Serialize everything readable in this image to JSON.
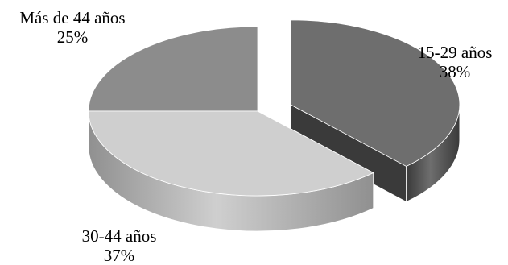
{
  "chart_data": {
    "type": "pie",
    "title": "",
    "categories": [
      "15-29 años",
      "30-44 años",
      "Más de 44 años"
    ],
    "values": [
      38,
      37,
      25
    ],
    "value_labels": [
      "38%",
      "37%",
      "25%"
    ],
    "colors": {
      "15-29 años": {
        "top": "#6e6e6e",
        "side": "#3a3a3a"
      },
      "30-44 años": {
        "top": "#cfcfcf",
        "side": "#909090"
      },
      "Más de 44 años": {
        "top": "#8c8c8c",
        "side": "#3e3e3e"
      }
    },
    "exploded": [
      "15-29 años"
    ],
    "legend": "none"
  }
}
